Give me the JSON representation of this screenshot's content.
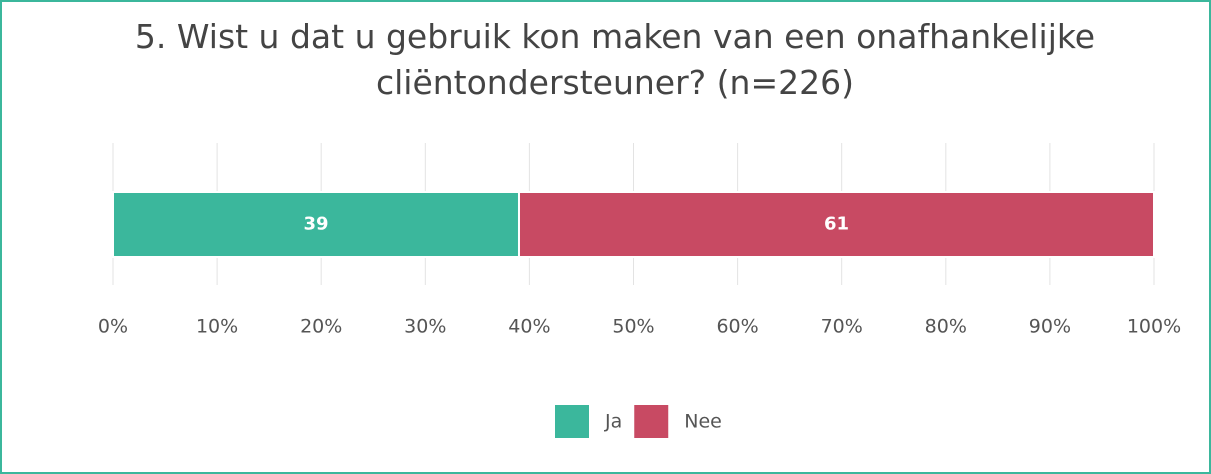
{
  "chart_data": {
    "type": "bar",
    "orientation": "horizontal",
    "stacked": true,
    "title": "5. Wist u dat u gebruik kon maken van een onafhankelijke cliëntondersteuner? (n=226)",
    "categories": [
      null
    ],
    "series": [
      {
        "name": "Ja",
        "color": "#3bb79c",
        "values": [
          39
        ]
      },
      {
        "name": "Nee",
        "color": "#c84a63",
        "values": [
          61
        ]
      }
    ],
    "xlim": [
      0,
      100
    ],
    "xticks": [
      {
        "value": 0,
        "label": "0%"
      },
      {
        "value": 10,
        "label": "10%"
      },
      {
        "value": 20,
        "label": "20%"
      },
      {
        "value": 30,
        "label": "30%"
      },
      {
        "value": 40,
        "label": "40%"
      },
      {
        "value": 50,
        "label": "50%"
      },
      {
        "value": 60,
        "label": "60%"
      },
      {
        "value": 70,
        "label": "70%"
      },
      {
        "value": 80,
        "label": "80%"
      },
      {
        "value": 90,
        "label": "90%"
      },
      {
        "value": 100,
        "label": "100%"
      }
    ],
    "grid": true,
    "legend": "bottom"
  }
}
